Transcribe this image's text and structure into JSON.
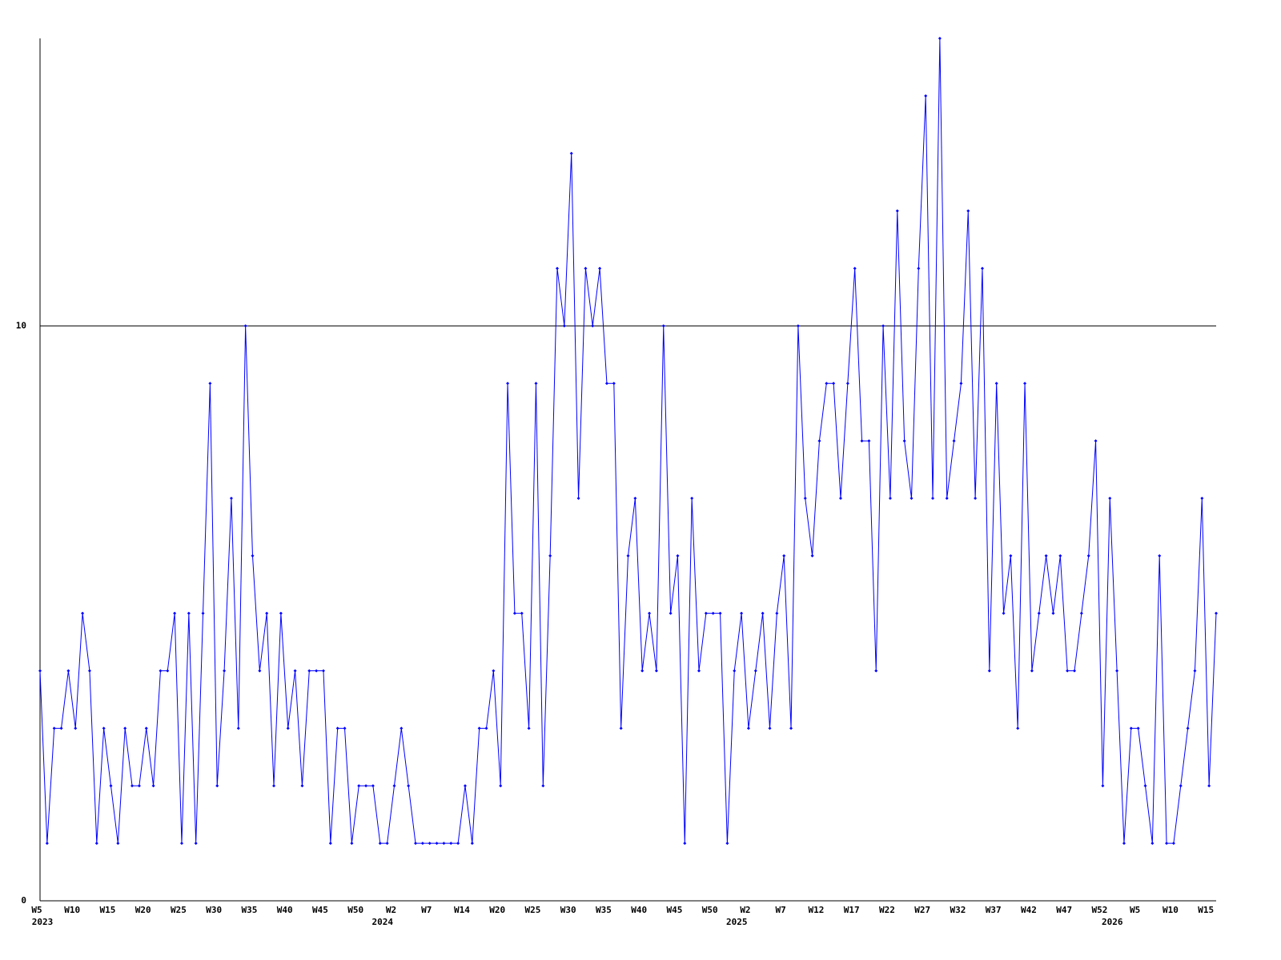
{
  "chart_data": {
    "type": "line",
    "categories": [
      "W5",
      null,
      null,
      null,
      null,
      "W10",
      null,
      null,
      null,
      null,
      "W15",
      null,
      null,
      null,
      null,
      "W20",
      null,
      null,
      null,
      null,
      "W25",
      null,
      null,
      null,
      null,
      "W30",
      null,
      null,
      null,
      null,
      "W35",
      null,
      null,
      null,
      null,
      "W40",
      null,
      null,
      null,
      null,
      "W45",
      null,
      null,
      null,
      null,
      "W50",
      null,
      null,
      null,
      null,
      "W2",
      null,
      null,
      null,
      null,
      "W7",
      null,
      null,
      null,
      null,
      "W14",
      null,
      null,
      null,
      null,
      "W20",
      null,
      null,
      null,
      null,
      "W25",
      null,
      null,
      null,
      null,
      "W30",
      null,
      null,
      null,
      null,
      "W35",
      null,
      null,
      null,
      null,
      "W40",
      null,
      null,
      null,
      null,
      "W45",
      null,
      null,
      null,
      null,
      "W50",
      null,
      null,
      null,
      null,
      "W2",
      null,
      null,
      null,
      null,
      "W7",
      null,
      null,
      null,
      null,
      "W12",
      null,
      null,
      null,
      null,
      "W17",
      null,
      null,
      null,
      null,
      "W22",
      null,
      null,
      null,
      null,
      "W27",
      null,
      null,
      null,
      null,
      "W32",
      null,
      null,
      null,
      null,
      "W37",
      null,
      null,
      null,
      null,
      "W42",
      null,
      null,
      null,
      null,
      "W47",
      null,
      null,
      null,
      null,
      "W52",
      null,
      null,
      null,
      null,
      "W5",
      null,
      null,
      null,
      null,
      "W10",
      null,
      null,
      null,
      null,
      "W15",
      null
    ],
    "years": [
      "2023",
      null,
      null,
      null,
      null,
      null,
      null,
      null,
      null,
      null,
      null,
      null,
      null,
      null,
      null,
      null,
      null,
      null,
      null,
      null,
      null,
      null,
      null,
      null,
      null,
      null,
      null,
      null,
      null,
      null,
      null,
      null,
      null,
      null,
      null,
      null,
      null,
      null,
      null,
      null,
      null,
      null,
      null,
      null,
      null,
      null,
      null,
      null,
      "2024",
      null,
      null,
      null,
      null,
      null,
      null,
      null,
      null,
      null,
      null,
      null,
      null,
      null,
      null,
      null,
      null,
      null,
      null,
      null,
      null,
      null,
      null,
      null,
      null,
      null,
      null,
      null,
      null,
      null,
      null,
      null,
      null,
      null,
      null,
      null,
      null,
      null,
      null,
      null,
      null,
      null,
      null,
      null,
      null,
      null,
      null,
      null,
      null,
      null,
      "2025",
      null,
      null,
      null,
      null,
      null,
      null,
      null,
      null,
      null,
      null,
      null,
      null,
      null,
      null,
      null,
      null,
      null,
      null,
      null,
      null,
      null,
      null,
      null,
      null,
      null,
      null,
      null,
      null,
      null,
      null,
      null,
      null,
      null,
      null,
      null,
      null,
      null,
      null,
      null,
      null,
      null,
      null,
      null,
      null,
      null,
      null,
      null,
      null,
      null,
      null,
      null,
      null,
      "2026",
      null,
      null,
      null,
      null,
      null,
      null,
      null,
      null,
      null,
      null,
      null,
      null,
      null,
      null,
      null
    ],
    "series": [
      {
        "color": "#0000ff",
        "values": [
          4,
          1,
          3,
          3,
          4,
          3,
          5,
          4,
          1,
          3,
          2,
          1,
          3,
          2,
          2,
          3,
          2,
          4,
          4,
          5,
          1,
          5,
          1,
          5,
          9,
          2,
          4,
          7,
          3,
          10,
          6,
          4,
          5,
          2,
          5,
          3,
          4,
          2,
          4,
          4,
          4,
          1,
          3,
          3,
          1,
          2,
          2,
          2,
          1,
          1,
          2,
          3,
          2,
          1,
          1,
          1,
          1,
          1,
          1,
          1,
          2,
          1,
          3,
          3,
          4,
          2,
          9,
          5,
          5,
          3,
          9,
          2,
          6,
          11,
          10,
          13,
          7,
          11,
          10,
          11,
          9,
          9,
          3,
          6,
          7,
          4,
          5,
          4,
          10,
          5,
          6,
          1,
          7,
          4,
          5,
          5,
          5,
          1,
          4,
          5,
          3,
          4,
          5,
          3,
          5,
          6,
          3,
          10,
          7,
          6,
          8,
          9,
          9,
          7,
          9,
          11,
          8,
          8,
          4,
          10,
          7,
          12,
          8,
          7,
          11,
          14,
          7,
          15,
          7,
          8,
          9,
          12,
          7,
          11,
          4,
          9,
          5,
          6,
          3,
          9,
          4,
          5,
          6,
          5,
          6,
          4,
          4,
          5,
          6,
          8,
          2,
          7,
          4,
          1,
          3,
          3,
          2,
          1,
          6,
          1,
          1,
          2,
          3,
          4,
          7,
          2,
          5
        ]
      }
    ],
    "ylim": [
      0,
      15
    ],
    "yticks": [
      0,
      10
    ],
    "grid": true
  }
}
